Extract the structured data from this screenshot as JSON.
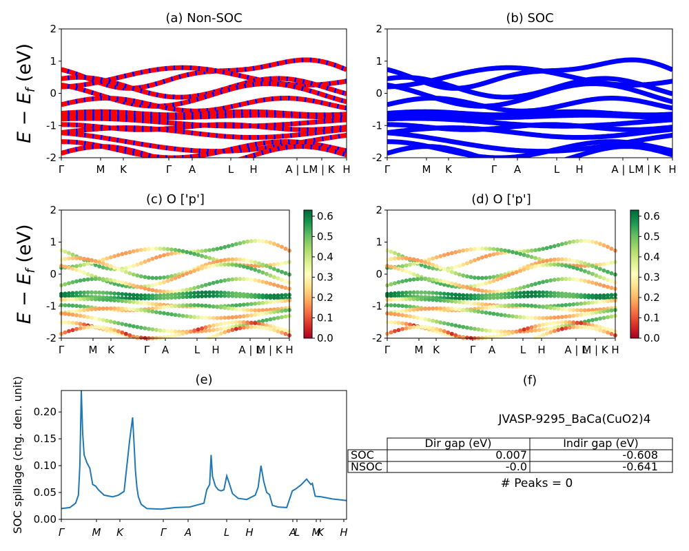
{
  "chart_data": [
    {
      "panel": "a",
      "type": "line",
      "title": "(a) Non-SOC",
      "ylabel": "E − E_f (eV)",
      "ylim": [
        -2,
        2
      ],
      "yticks": [
        "2",
        "1",
        "0",
        "-1",
        "-2"
      ],
      "kpath_labels": [
        "Γ",
        "M",
        "K",
        "Γ",
        "A",
        "L",
        "H",
        "A | L",
        "M | K",
        "H"
      ],
      "series_colors": [
        "#ff0000",
        "#0000ff"
      ]
    },
    {
      "panel": "b",
      "type": "line",
      "title": "(b) SOC",
      "ylim": [
        -2,
        2
      ],
      "yticks": [
        "2",
        "1",
        "0",
        "-1",
        "-2"
      ],
      "kpath_labels": [
        "Γ",
        "M",
        "K",
        "Γ",
        "A",
        "L",
        "H",
        "A | L",
        "M | K",
        "H"
      ],
      "series_colors": [
        "#0000ff"
      ]
    },
    {
      "panel": "c",
      "type": "scatter",
      "title": "(c)  O ['p']",
      "ylabel": "E − E_f (eV)",
      "ylim": [
        -2,
        2
      ],
      "yticks": [
        "2",
        "1",
        "0",
        "-1",
        "-2"
      ],
      "kpath_labels": [
        "Γ",
        "M",
        "K",
        "Γ",
        "A",
        "L",
        "H",
        "A | L",
        "M | K",
        "H"
      ],
      "colorbar": {
        "min": 0.0,
        "max": 0.63,
        "ticks": [
          "0.6",
          "0.5",
          "0.4",
          "0.3",
          "0.2",
          "0.1",
          "0.0"
        ],
        "colormap": "RdYlGn"
      }
    },
    {
      "panel": "d",
      "type": "scatter",
      "title": "(d) O ['p']",
      "ylim": [
        -2,
        2
      ],
      "yticks": [
        "2",
        "1",
        "0",
        "-1",
        "-2"
      ],
      "kpath_labels": [
        "Γ",
        "M",
        "K",
        "Γ",
        "A",
        "L",
        "H",
        "A | L",
        "M | K",
        "H"
      ],
      "colorbar": {
        "min": 0.0,
        "max": 0.63,
        "ticks": [
          "0.6",
          "0.5",
          "0.4",
          "0.3",
          "0.2",
          "0.1",
          "0.0"
        ],
        "colormap": "RdYlGn"
      }
    },
    {
      "panel": "e",
      "type": "line",
      "title": "(e)",
      "ylabel": "SOC spillage (chg. den. unit)",
      "ylim": [
        0,
        0.24
      ],
      "yticks": [
        "0.20",
        "0.15",
        "0.10",
        "0.05",
        "0.00"
      ],
      "kpath_labels": [
        "Γ",
        "M",
        "K",
        "Γ",
        "A",
        "L",
        "H",
        "A",
        "L",
        "M",
        "K",
        "H"
      ],
      "series": [
        {
          "color": "#1f77b4",
          "x": [
            0.0,
            0.03,
            0.05,
            0.06,
            0.065,
            0.07,
            0.075,
            0.08,
            0.09,
            0.1,
            0.11,
            0.12,
            0.13,
            0.15,
            0.18,
            0.2,
            0.22,
            0.24,
            0.25,
            0.255,
            0.26,
            0.265,
            0.27,
            0.28,
            0.3,
            0.35,
            0.4,
            0.45,
            0.5,
            0.51,
            0.52,
            0.525,
            0.53,
            0.54,
            0.55,
            0.56,
            0.57,
            0.58,
            0.59,
            0.6,
            0.62,
            0.65,
            0.68,
            0.69,
            0.7,
            0.71,
            0.72,
            0.73,
            0.74,
            0.76,
            0.79,
            0.81,
            0.82,
            0.84,
            0.86,
            0.87,
            0.875,
            0.88,
            0.89,
            0.91,
            0.95,
            1.0
          ],
          "y": [
            0.02,
            0.022,
            0.03,
            0.045,
            0.1,
            0.24,
            0.16,
            0.12,
            0.105,
            0.095,
            0.065,
            0.062,
            0.055,
            0.045,
            0.042,
            0.045,
            0.052,
            0.15,
            0.19,
            0.14,
            0.09,
            0.06,
            0.042,
            0.028,
            0.02,
            0.019,
            0.022,
            0.023,
            0.03,
            0.055,
            0.065,
            0.12,
            0.08,
            0.062,
            0.055,
            0.053,
            0.055,
            0.081,
            0.065,
            0.048,
            0.039,
            0.037,
            0.045,
            0.06,
            0.1,
            0.07,
            0.05,
            0.046,
            0.026,
            0.023,
            0.022,
            0.053,
            0.056,
            0.064,
            0.075,
            0.068,
            0.065,
            0.067,
            0.043,
            0.042,
            0.038,
            0.035
          ]
        }
      ]
    }
  ],
  "panel_f": {
    "title": "(f)",
    "material": "JVASP-9295_BaCa(CuO2)4",
    "table": {
      "headers": [
        "",
        "Dir gap (eV)",
        "Indir gap (eV)"
      ],
      "rows": [
        [
          "SOC",
          "0.007",
          "-0.608"
        ],
        [
          "NSOC",
          "-0.0",
          "-0.641"
        ]
      ]
    },
    "peaks": "# Peaks = 0"
  }
}
